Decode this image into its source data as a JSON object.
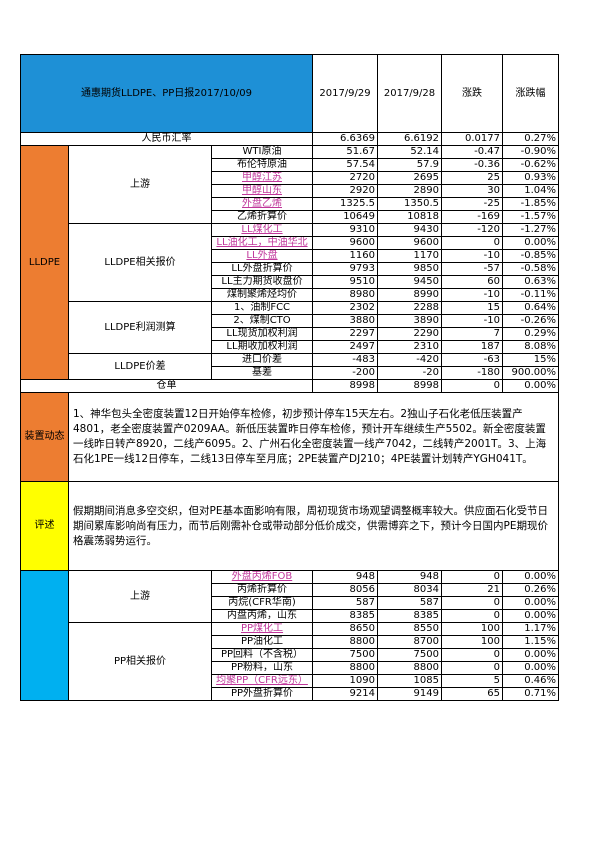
{
  "title": "通惠期货LLDPE、PP日报2017/10/09",
  "header": {
    "date1": "2017/9/29",
    "date2": "2017/9/28",
    "change": "涨跌",
    "pct": "涨跌幅"
  },
  "fx": {
    "label": "人民币汇率",
    "v1": "6.6369",
    "v2": "6.6192",
    "chg": "0.0177",
    "pct": "0.27%"
  },
  "sections": {
    "lldpe": "LLDPE",
    "upstream": "上游",
    "related": "LLDPE相关报价",
    "profit": "LLDPE利润测算",
    "spread": "LLDPE价差",
    "device": "装置动态",
    "comment": "评述",
    "pp_upstream": "上游",
    "pp_related": "PP相关报价"
  },
  "upstream_rows": [
    {
      "name": "WTI原油",
      "v1": "51.67",
      "v2": "52.14",
      "chg": "-0.47",
      "pct": "-0.90%",
      "link": false
    },
    {
      "name": "布伦特原油",
      "v1": "57.54",
      "v2": "57.9",
      "chg": "-0.36",
      "pct": "-0.62%",
      "link": false
    },
    {
      "name": "甲醇江苏",
      "v1": "2720",
      "v2": "2695",
      "chg": "25",
      "pct": "0.93%",
      "link": true
    },
    {
      "name": "甲醇山东",
      "v1": "2920",
      "v2": "2890",
      "chg": "30",
      "pct": "1.04%",
      "link": true
    },
    {
      "name": "外盘乙烯",
      "v1": "1325.5",
      "v2": "1350.5",
      "chg": "-25",
      "pct": "-1.85%",
      "link": true
    },
    {
      "name": "乙烯折算价",
      "v1": "10649",
      "v2": "10818",
      "chg": "-169",
      "pct": "-1.57%",
      "link": false
    }
  ],
  "related_rows": [
    {
      "name": "LL煤化工",
      "v1": "9310",
      "v2": "9430",
      "chg": "-120",
      "pct": "-1.27%",
      "link": true
    },
    {
      "name": "LL油化工，中油华北",
      "v1": "9600",
      "v2": "9600",
      "chg": "0",
      "pct": "0.00%",
      "link": true
    },
    {
      "name": "LL外盘",
      "v1": "1160",
      "v2": "1170",
      "chg": "-10",
      "pct": "-0.85%",
      "link": true
    },
    {
      "name": "LL外盘折算价",
      "v1": "9793",
      "v2": "9850",
      "chg": "-57",
      "pct": "-0.58%",
      "link": false
    },
    {
      "name": "LL主力期货收盘价",
      "v1": "9510",
      "v2": "9450",
      "chg": "60",
      "pct": "0.63%",
      "link": false
    },
    {
      "name": "煤制聚烯烃均价",
      "v1": "8980",
      "v2": "8990",
      "chg": "-10",
      "pct": "-0.11%",
      "link": false
    }
  ],
  "profit_rows": [
    {
      "name": "1、油制FCC",
      "v1": "2302",
      "v2": "2288",
      "chg": "15",
      "pct": "0.64%",
      "link": false
    },
    {
      "name": "2、煤制CTO",
      "v1": "3880",
      "v2": "3890",
      "chg": "-10",
      "pct": "-0.26%",
      "link": false
    },
    {
      "name": "LL现货加权利润",
      "v1": "2297",
      "v2": "2290",
      "chg": "7",
      "pct": "0.29%",
      "link": false
    },
    {
      "name": "LL期收加权利润",
      "v1": "2497",
      "v2": "2310",
      "chg": "187",
      "pct": "8.08%",
      "link": false
    }
  ],
  "spread_rows": [
    {
      "name": "进口价差",
      "v1": "-483",
      "v2": "-420",
      "chg": "-63",
      "pct": "15%",
      "link": false
    },
    {
      "name": "基差",
      "v1": "-200",
      "v2": "-20",
      "chg": "-180",
      "pct": "900.00%",
      "link": false
    }
  ],
  "warehouse": {
    "label": "仓单",
    "v1": "8998",
    "v2": "8998",
    "chg": "0",
    "pct": "0.00%"
  },
  "device_text": "1、神华包头全密度装置12日开始停车检修，初步预计停车15天左右。2独山子石化老低压装置产4801，老全密度装置产0209AA。新低压装置昨日停车检修，预计开车继续生产5502。新全密度装置一线昨日转产8920，二线产6095。2、广州石化全密度装置一线产7042，二线转产2001T。3、上海石化1PE一线12日停车，二线13日停车至月底；2PE装置产DJ210；4PE装置计划转产YGH041T。",
  "comment_text": "假期期间消息多空交织，但对PE基本面影响有限，周初现货市场观望调整概率较大。供应面石化受节日期间累库影响尚有压力，而节后刚需补仓或带动部分低价成交，供需博弈之下，预计今日国内PE期现价格震荡弱势运行。",
  "pp_upstream_rows": [
    {
      "name": "外盘丙烯FOB",
      "v1": "948",
      "v2": "948",
      "chg": "0",
      "pct": "0.00%",
      "link": true
    },
    {
      "name": "丙烯折算价",
      "v1": "8056",
      "v2": "8034",
      "chg": "21",
      "pct": "0.26%",
      "link": false
    },
    {
      "name": "丙烷(CFR华南)",
      "v1": "587",
      "v2": "587",
      "chg": "0",
      "pct": "0.00%",
      "link": false
    },
    {
      "name": "内盘丙烯，山东",
      "v1": "8385",
      "v2": "8385",
      "chg": "0",
      "pct": "0.00%",
      "link": false
    }
  ],
  "pp_related_rows": [
    {
      "name": "PP煤化工",
      "v1": "8650",
      "v2": "8550",
      "chg": "100",
      "pct": "1.17%",
      "link": true
    },
    {
      "name": "PP油化工",
      "v1": "8800",
      "v2": "8700",
      "chg": "100",
      "pct": "1.15%",
      "link": false
    },
    {
      "name": "PP回料（不含税）",
      "v1": "7500",
      "v2": "7500",
      "chg": "0",
      "pct": "0.00%",
      "link": false
    },
    {
      "name": "PP粉料，山东",
      "v1": "8800",
      "v2": "8800",
      "chg": "0",
      "pct": "0.00%",
      "link": false
    },
    {
      "name": "均聚PP（CFR远东）",
      "v1": "1090",
      "v2": "1085",
      "chg": "5",
      "pct": "0.46%",
      "link": true
    },
    {
      "name": "PP外盘折算价",
      "v1": "9214",
      "v2": "9149",
      "chg": "65",
      "pct": "0.71%",
      "link": false
    }
  ]
}
